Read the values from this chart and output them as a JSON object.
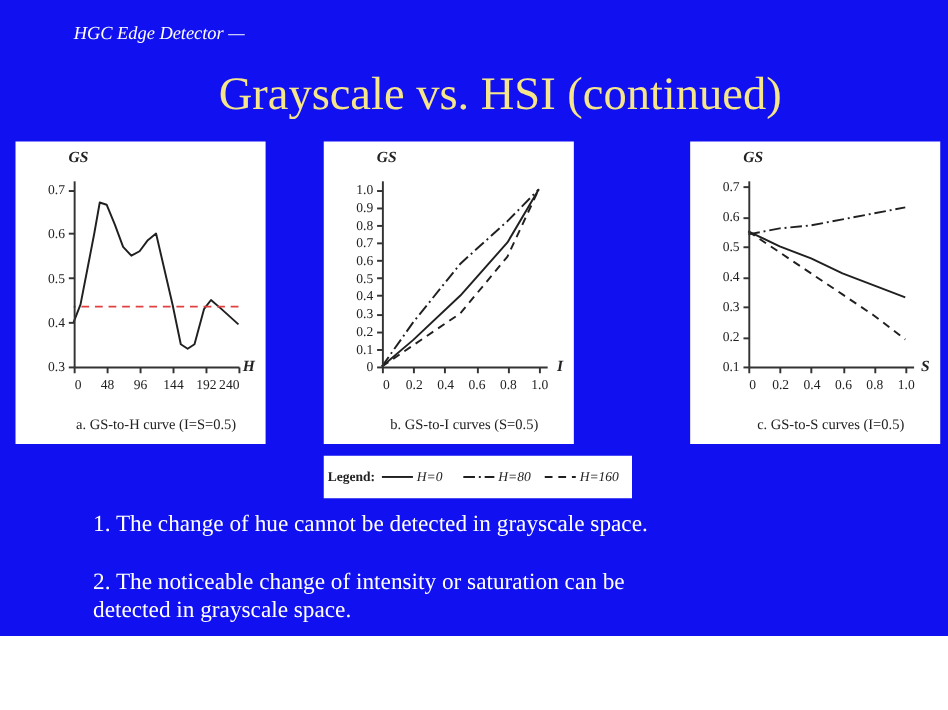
{
  "chart_data": [
    {
      "type": "other",
      "subtitle": "HGC Edge Detector —",
      "title": "Grayscale vs. HSI (continued)",
      "annotations": [
        "1.  The change of hue cannot be detected in grayscale space.",
        "2.  The noticeable change of intensity or saturation can be detected in grayscale space."
      ]
    },
    {
      "type": "line",
      "title": "a. GS-to-H curve (I=S=0.5)",
      "xlabel": "H",
      "ylabel": "GS",
      "x": [
        0,
        10,
        20,
        30,
        38,
        48,
        60,
        72,
        84,
        96,
        108,
        120,
        132,
        144,
        156,
        166,
        176,
        190,
        200,
        215,
        240
      ],
      "series": [
        {
          "color": "#202020",
          "values": [
            0.4,
            0.44,
            0.52,
            0.6,
            0.67,
            0.665,
            0.62,
            0.57,
            0.55,
            0.56,
            0.585,
            0.6,
            0.52,
            0.44,
            0.35,
            0.34,
            0.35,
            0.43,
            0.45,
            0.43,
            0.395
          ]
        }
      ],
      "xlim": [
        0,
        240
      ],
      "ylim": [
        0.3,
        0.72
      ],
      "xticks": [
        0,
        48,
        96,
        144,
        192,
        240
      ],
      "yticks": [
        0.3,
        0.4,
        0.5,
        0.6,
        0.7
      ],
      "ref_lines": [
        {
          "axis": "y",
          "value": 0.435,
          "color": "#e04040",
          "line_style": "dashed"
        }
      ],
      "marker": "none",
      "grid": false,
      "legend": false
    },
    {
      "type": "line",
      "title": "b. GS-to-I curves (S=0.5)",
      "xlabel": "I",
      "ylabel": "GS",
      "legend_title": "Legend:",
      "x": [
        0,
        0.2,
        0.5,
        0.8,
        1
      ],
      "series": [
        {
          "name": "H=0",
          "color": "#202020",
          "line_style": "solid",
          "values": [
            0,
            0.15,
            0.4,
            0.7,
            1
          ]
        },
        {
          "name": "H=80",
          "color": "#202020",
          "line_style": "dashdot",
          "values": [
            0,
            0.25,
            0.58,
            0.82,
            1
          ]
        },
        {
          "name": "H=160",
          "color": "#202020",
          "line_style": "dashed",
          "values": [
            0,
            0.12,
            0.3,
            0.62,
            1
          ]
        }
      ],
      "xlim": [
        0,
        1.05
      ],
      "ylim": [
        0,
        1.05
      ],
      "xticks": [
        0,
        0.2,
        0.4,
        0.6,
        0.8,
        {
          "value": 1,
          "label": "1.0"
        }
      ],
      "yticks": [
        0,
        0.1,
        0.2,
        0.3,
        0.4,
        0.5,
        0.6,
        0.7,
        0.8,
        0.9,
        {
          "value": 1,
          "label": "1.0"
        }
      ],
      "marker": "none",
      "grid": false,
      "legend": "bottom"
    },
    {
      "type": "line",
      "title": "c. GS-to-S curves (I=0.5)",
      "xlabel": "S",
      "ylabel": "GS",
      "x": [
        0,
        0.2,
        0.4,
        0.6,
        0.8,
        1
      ],
      "series": [
        {
          "color": "#202020",
          "line_style": "solid",
          "values": [
            0.55,
            0.5,
            0.46,
            0.41,
            0.37,
            0.33
          ]
        },
        {
          "color": "#202020",
          "line_style": "dashdot",
          "values": [
            0.54,
            0.56,
            0.57,
            0.59,
            0.61,
            0.63
          ]
        },
        {
          "color": "#202020",
          "line_style": "dashed",
          "values": [
            0.55,
            0.48,
            0.41,
            0.34,
            0.27,
            0.19
          ]
        }
      ],
      "xlim": [
        0,
        1.05
      ],
      "ylim": [
        0.1,
        0.72
      ],
      "xticks": [
        0,
        0.2,
        0.4,
        0.6,
        0.8,
        {
          "value": 1,
          "label": "1.0"
        }
      ],
      "yticks": [
        0.1,
        0.2,
        0.3,
        0.4,
        0.5,
        0.6,
        0.7
      ],
      "marker": "none",
      "grid": false,
      "legend": false
    }
  ]
}
